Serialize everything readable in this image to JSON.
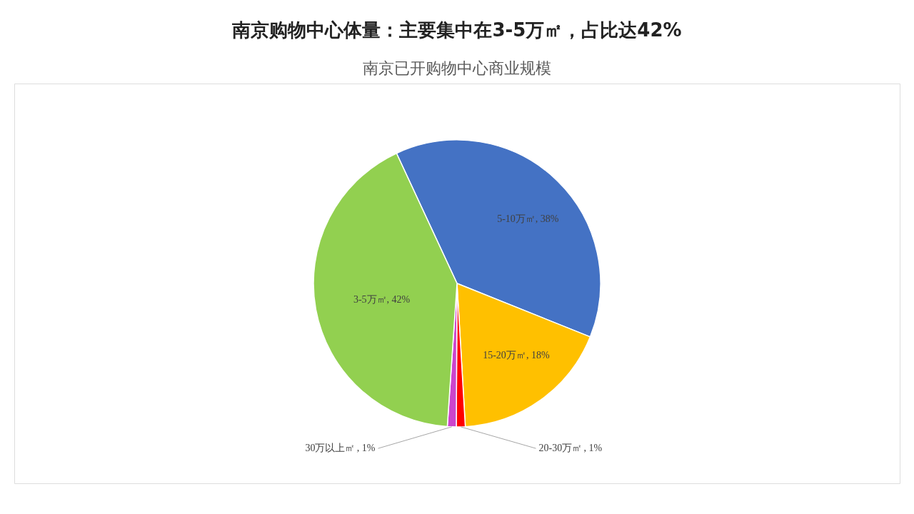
{
  "chart_data": {
    "type": "pie",
    "title": "南京购物中心体量：主要集中在3-5万㎡，占比达42%",
    "subtitle": "南京已开购物中心商业规模",
    "categories": [
      "5-10万㎡",
      "15-20万㎡",
      "20-30万㎡",
      "30万以上㎡",
      "3-5万㎡"
    ],
    "values": [
      38,
      18,
      1,
      1,
      42
    ],
    "colors": [
      "#4472c4",
      "#ffc000",
      "#ff0000",
      "#cc44cc",
      "#92d050"
    ],
    "value_labels": [
      ", 38%",
      ", 18%",
      ", 1%",
      ", 1%",
      ", 42%"
    ],
    "legend": false
  }
}
